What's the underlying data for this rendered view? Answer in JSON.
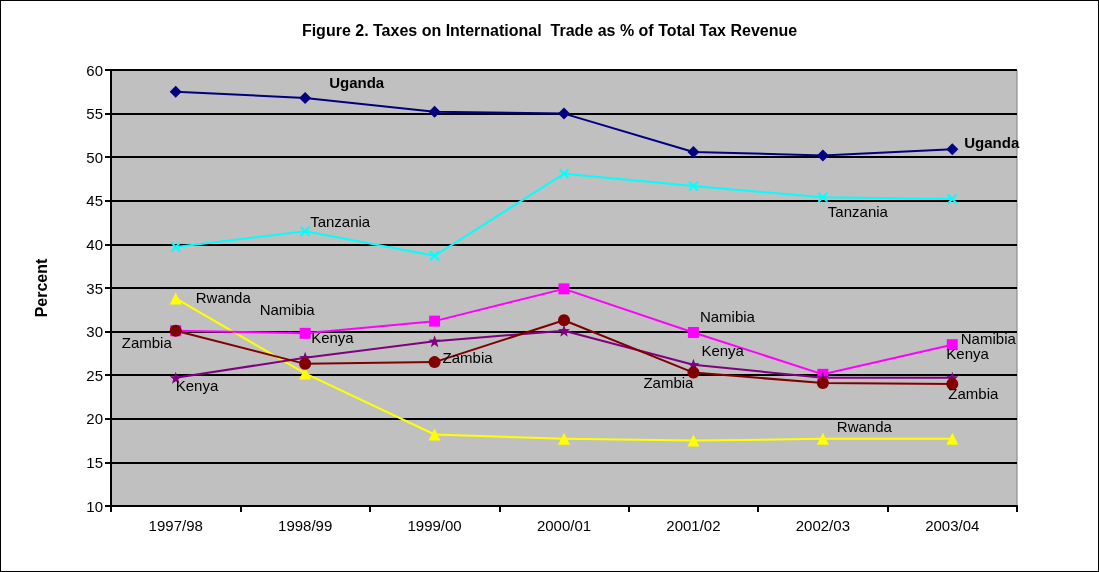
{
  "chart_data": {
    "type": "line",
    "title": "Figure 2. Taxes on International  Trade as % of Total Tax Revenue",
    "ylabel": "Percent",
    "categories": [
      "1997/98",
      "1998/99",
      "1999/00",
      "2000/01",
      "2001/02",
      "2002/03",
      "2003/04"
    ],
    "series": [
      {
        "name": "Uganda",
        "color": "#000080",
        "marker": "diamond",
        "values": [
          57.5,
          56.8,
          55.2,
          55.0,
          50.6,
          50.2,
          50.9
        ]
      },
      {
        "name": "Tanzania",
        "color": "#00ffff",
        "marker": "cross",
        "values": [
          39.7,
          41.5,
          38.7,
          48.1,
          46.7,
          45.4,
          45.2
        ]
      },
      {
        "name": "Rwanda",
        "color": "#ffff00",
        "marker": "triangle",
        "values": [
          33.8,
          25.2,
          18.2,
          17.7,
          17.5,
          17.7,
          17.7
        ]
      },
      {
        "name": "Namibia",
        "color": "#ff00ff",
        "marker": "square",
        "values": [
          30.1,
          29.8,
          31.2,
          34.9,
          29.9,
          25.1,
          28.5
        ]
      },
      {
        "name": "Kenya",
        "color": "#800080",
        "marker": "star",
        "values": [
          24.7,
          27.0,
          28.9,
          30.1,
          26.2,
          24.7,
          24.7
        ]
      },
      {
        "name": "Zambia",
        "color": "#800000",
        "marker": "circle",
        "values": [
          30.1,
          26.3,
          26.5,
          31.3,
          25.3,
          24.1,
          24.0
        ]
      }
    ],
    "ylim": [
      10,
      60
    ],
    "yticks": [
      10,
      15,
      20,
      25,
      30,
      35,
      40,
      45,
      50,
      55,
      60
    ],
    "grid": "y",
    "legend": false,
    "line_style": "solid"
  }
}
